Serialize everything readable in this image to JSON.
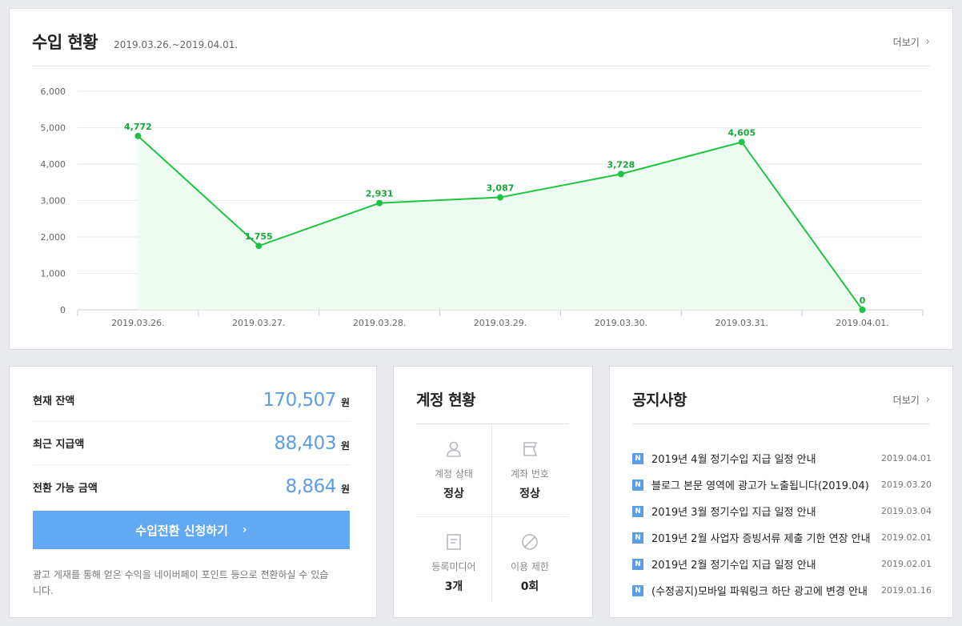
{
  "revenue": {
    "title": "수입 현황",
    "range": "2019.03.26.~2019.04.01.",
    "more_label": "더보기"
  },
  "chart_data": {
    "type": "area",
    "categories": [
      "2019.03.26.",
      "2019.03.27.",
      "2019.03.28.",
      "2019.03.29.",
      "2019.03.30.",
      "2019.03.31.",
      "2019.04.01."
    ],
    "values": [
      4772,
      1755,
      2931,
      3087,
      3728,
      4605,
      0
    ],
    "value_labels": [
      "4,772",
      "1,755",
      "2,931",
      "3,087",
      "3,728",
      "4,605",
      "0"
    ],
    "y_ticks": [
      "0",
      "1,000",
      "2,000",
      "3,000",
      "4,000",
      "5,000",
      "6,000"
    ],
    "ylim": [
      0,
      6000
    ],
    "line_color": "#1ec543",
    "fill_color": "#eefbf1",
    "grid": true
  },
  "balance": {
    "rows": [
      {
        "label": "현재 잔액",
        "value": "170,507",
        "unit": "원"
      },
      {
        "label": "최근 지급액",
        "value": "88,403",
        "unit": "원"
      },
      {
        "label": "전환 가능 금액",
        "value": "8,864",
        "unit": "원"
      }
    ],
    "button_label": "수입전환 신청하기",
    "note": "광고 게재를 통해 얻은 수익을 네이버페이 포인트 등으로 전환하실 수 있습니다."
  },
  "account": {
    "title": "계정 현황",
    "cells": [
      {
        "icon": "user-icon",
        "label": "계정 상태",
        "value": "정상"
      },
      {
        "icon": "card-icon",
        "label": "계좌 번호",
        "value": "정상"
      },
      {
        "icon": "document-icon",
        "label": "등록미디어",
        "value": "3개"
      },
      {
        "icon": "prohibited-icon",
        "label": "이용 제한",
        "value": "0회"
      }
    ]
  },
  "notice": {
    "title": "공지사항",
    "more_label": "더보기",
    "badge": "N",
    "items": [
      {
        "text": "2019년 4월 정기수입 지급 일정 안내",
        "date": "2019.04.01"
      },
      {
        "text": "블로그 본문 영역에 광고가 노출됩니다(2019.04)",
        "date": "2019.03.20"
      },
      {
        "text": "2019년 3월 정기수입 지급 일정 안내",
        "date": "2019.03.04"
      },
      {
        "text": "2019년 2월 사업자 증빙서류 제출 기한 연장 안내",
        "date": "2019.02.01"
      },
      {
        "text": "2019년 2월 정기수입 지급 일정 안내",
        "date": "2019.02.01"
      },
      {
        "text": "(수정공지)모바일 파워링크 하단 광고에 변경 안내",
        "date": "2019.01.16"
      }
    ]
  }
}
